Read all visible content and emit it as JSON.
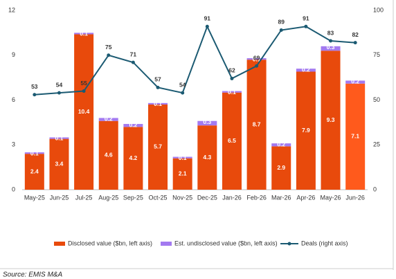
{
  "chart_data": {
    "type": "bar",
    "categories": [
      "May-25",
      "Jun-25",
      "Jul-25",
      "Aug-25",
      "Sep-25",
      "Oct-25",
      "Nov-25",
      "Dec-25",
      "Jan-26",
      "Feb-26",
      "Mar-26",
      "Apr-26",
      "May-26",
      "Jun-26"
    ],
    "series": [
      {
        "name": "Disclosed value ($bn, left axis)",
        "color": "#e84a0c",
        "colors": [
          "#e84a0c",
          "#e84a0c",
          "#e84a0c",
          "#e84a0c",
          "#e84a0c",
          "#e84a0c",
          "#e84a0c",
          "#e84a0c",
          "#e84a0c",
          "#e84a0c",
          "#e84a0c",
          "#e84a0c",
          "#e84a0c",
          "#ff5a1c"
        ],
        "values": [
          2.4,
          3.4,
          10.4,
          4.6,
          4.2,
          5.7,
          2.1,
          4.3,
          6.5,
          8.7,
          2.9,
          7.9,
          9.3,
          7.1
        ]
      },
      {
        "name": "Est. undisclosed value ($bn, left axis)",
        "color": "#a37af0",
        "values": [
          0.1,
          0.1,
          0.1,
          0.2,
          0.2,
          0.1,
          0.1,
          0.3,
          0.1,
          0.1,
          0.2,
          0.2,
          0.3,
          0.2
        ]
      },
      {
        "name": "Deals (right axis)",
        "color": "#1b5a72",
        "axis": "y2",
        "values": [
          53,
          54,
          55,
          75,
          71,
          57,
          54,
          91,
          62,
          69,
          89,
          91,
          83,
          82
        ]
      }
    ],
    "ylim": [
      0,
      12
    ],
    "yticks": [
      0,
      3,
      6,
      9,
      12
    ],
    "y2lim": [
      0,
      100
    ],
    "y2ticks": [
      0,
      25,
      50,
      75,
      100
    ],
    "source": "Source: EMIS M&A"
  }
}
